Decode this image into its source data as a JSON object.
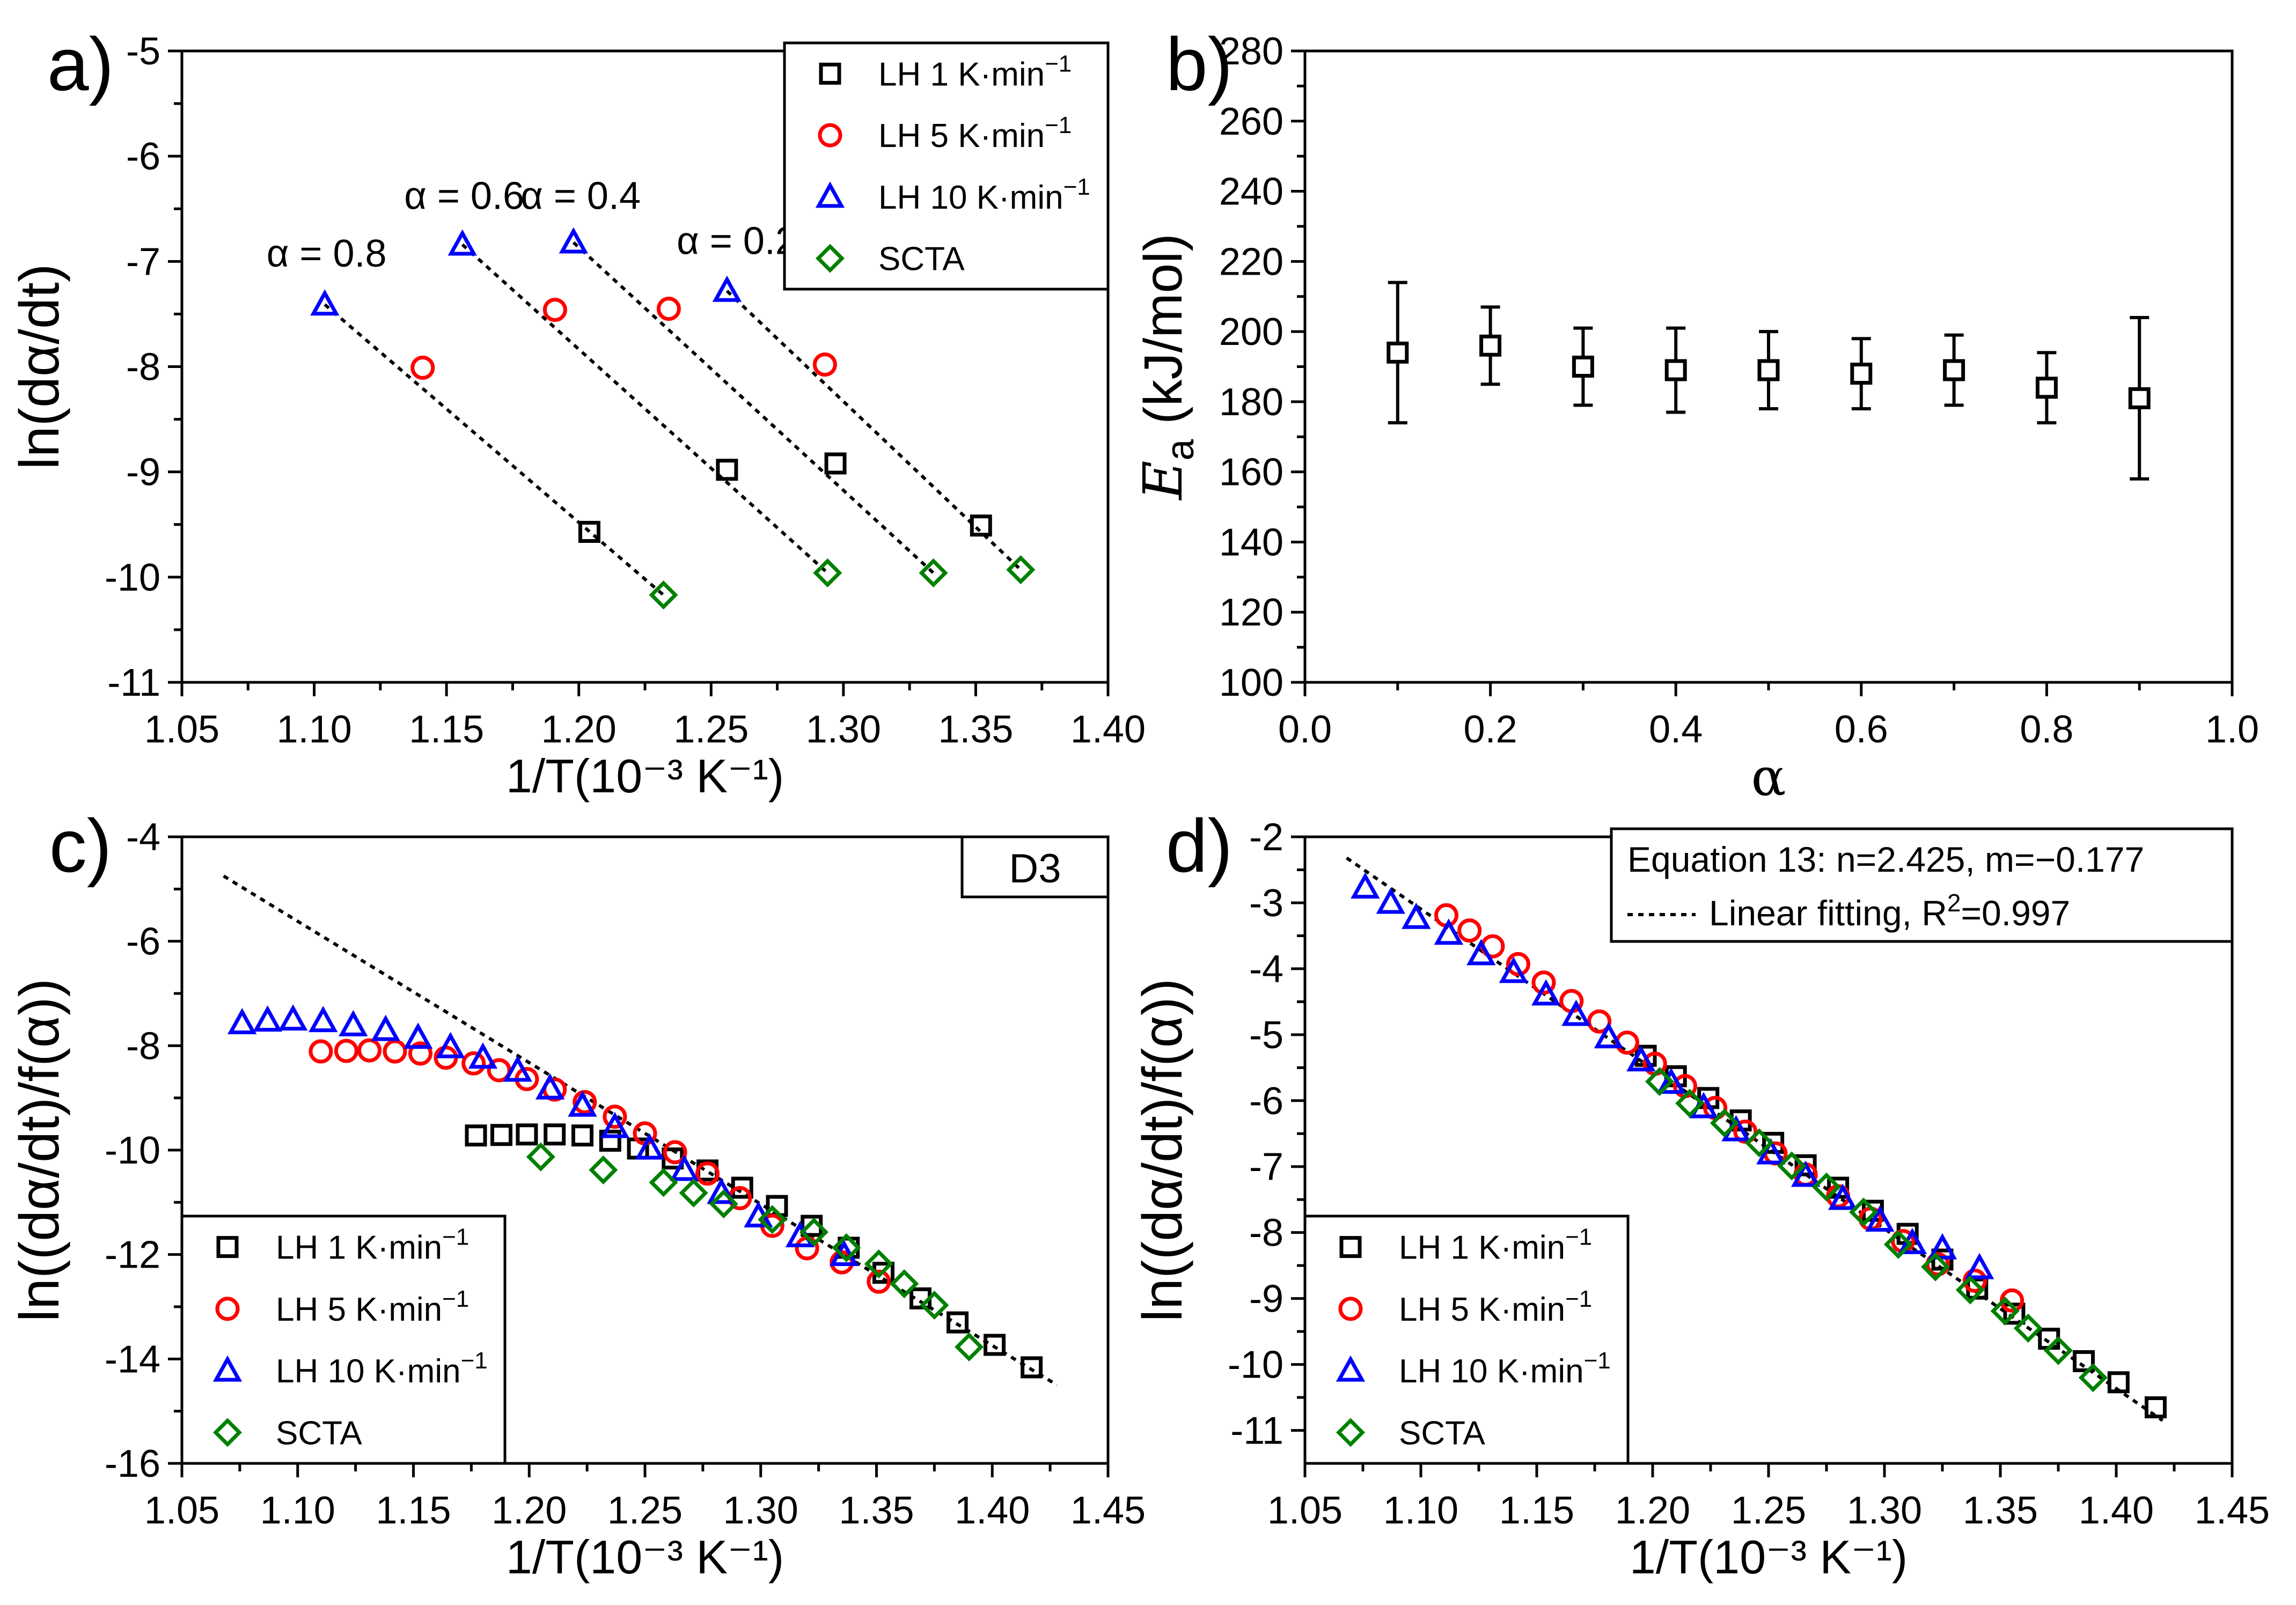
{
  "chart_data": [
    {
      "id": "a",
      "type": "scatter",
      "panel_label": "a)",
      "xlabel": "1/T(10⁻³ K⁻¹)",
      "ylabel": "ln(dα/dt)",
      "xlim": [
        1.05,
        1.4
      ],
      "ylim": [
        -11,
        -5
      ],
      "xticks": [
        "1.05",
        "1.10",
        "1.15",
        "1.20",
        "1.25",
        "1.30",
        "1.35",
        "1.40"
      ],
      "yticks": [
        "-5",
        "-6",
        "-7",
        "-8",
        "-9",
        "-10",
        "-11"
      ],
      "legend": {
        "placement": "top-right"
      },
      "series": [
        {
          "name": "LH 1 K·min⁻¹",
          "marker": "square",
          "color": "#000000",
          "x": [
            1.204,
            1.256,
            1.297,
            1.352
          ],
          "y": [
            -9.57,
            -8.98,
            -8.92,
            -9.51
          ]
        },
        {
          "name": "LH 5 K·min⁻¹",
          "marker": "circle",
          "color": "#ff0000",
          "x": [
            1.141,
            1.191,
            1.234,
            1.293
          ],
          "y": [
            -8.01,
            -7.46,
            -7.45,
            -7.98
          ]
        },
        {
          "name": "LH 10 K·min⁻¹",
          "marker": "triangle",
          "color": "#0000ff",
          "x": [
            1.104,
            1.156,
            1.198,
            1.256
          ],
          "y": [
            -7.41,
            -6.84,
            -6.82,
            -7.28
          ]
        },
        {
          "name": "SCTA",
          "marker": "diamond",
          "color": "#008000",
          "x": [
            1.232,
            1.294,
            1.334,
            1.367
          ],
          "y": [
            -10.17,
            -9.96,
            -9.96,
            -9.93
          ]
        }
      ],
      "fit_lines": [
        {
          "x": [
            1.104,
            1.232
          ],
          "y": [
            -7.41,
            -10.17
          ]
        },
        {
          "x": [
            1.156,
            1.294
          ],
          "y": [
            -6.84,
            -9.96
          ]
        },
        {
          "x": [
            1.198,
            1.334
          ],
          "y": [
            -6.82,
            -9.96
          ]
        },
        {
          "x": [
            1.256,
            1.367
          ],
          "y": [
            -7.28,
            -9.93
          ]
        }
      ],
      "annotations": [
        {
          "text": "α = 0.8",
          "x": 1.082,
          "y": -7.05
        },
        {
          "text": "α = 0.6",
          "x": 1.134,
          "y": -6.5
        },
        {
          "text": "α = 0.4",
          "x": 1.178,
          "y": -6.5
        },
        {
          "text": "α = 0.2",
          "x": 1.237,
          "y": -6.93
        }
      ]
    },
    {
      "id": "b",
      "type": "scatter",
      "panel_label": "b)",
      "xlabel": "α",
      "ylabel_main": "E",
      "ylabel_sub": "a",
      "ylabel_rest": " (kJ/mol)",
      "xlim": [
        0.0,
        1.0
      ],
      "ylim": [
        100,
        280
      ],
      "xticks": [
        "0.0",
        "0.2",
        "0.4",
        "0.6",
        "0.8",
        "1.0"
      ],
      "yticks": [
        "100",
        "120",
        "140",
        "160",
        "180",
        "200",
        "220",
        "240",
        "260",
        "280"
      ],
      "series": [
        {
          "name": "Ea",
          "marker": "square",
          "color": "#000000",
          "x": [
            0.1,
            0.2,
            0.3,
            0.4,
            0.5,
            0.6,
            0.7,
            0.8,
            0.9
          ],
          "y": [
            194,
            196,
            190,
            189,
            189,
            188,
            189,
            184,
            181
          ],
          "error_low": [
            174,
            185,
            179,
            177,
            178,
            178,
            179,
            174,
            158
          ],
          "error_high": [
            214,
            207,
            201,
            201,
            200,
            198,
            199,
            194,
            204
          ]
        }
      ]
    },
    {
      "id": "c",
      "type": "scatter",
      "panel_label": "c)",
      "xlabel": "1/T(10⁻³ K⁻¹)",
      "ylabel": "ln((dα/dt)/f(α))",
      "xlim": [
        1.05,
        1.45
      ],
      "ylim": [
        -16,
        -4
      ],
      "xticks": [
        "1.05",
        "1.10",
        "1.15",
        "1.20",
        "1.25",
        "1.30",
        "1.35",
        "1.40",
        "1.45"
      ],
      "yticks": [
        "-4",
        "-6",
        "-8",
        "-10",
        "-12",
        "-14",
        "-16"
      ],
      "model_label": "D3",
      "legend": {
        "placement": "bottom-left"
      },
      "series": [
        {
          "name": "LH 1 K·min⁻¹",
          "marker": "square",
          "color": "#000000",
          "x": [
            1.177,
            1.188,
            1.199,
            1.211,
            1.223,
            1.235,
            1.247,
            1.262,
            1.277,
            1.292,
            1.307,
            1.322,
            1.338,
            1.353,
            1.369,
            1.385,
            1.401,
            1.417
          ],
          "y": [
            -9.72,
            -9.71,
            -9.7,
            -9.7,
            -9.72,
            -9.82,
            -9.97,
            -10.16,
            -10.39,
            -10.72,
            -11.07,
            -11.45,
            -11.87,
            -12.35,
            -12.84,
            -13.3,
            -13.73,
            -14.16
          ]
        },
        {
          "name": "LH 5 K·min⁻¹",
          "marker": "circle",
          "color": "#ff0000",
          "x": [
            1.11,
            1.121,
            1.131,
            1.142,
            1.153,
            1.164,
            1.176,
            1.187,
            1.199,
            1.211,
            1.224,
            1.237,
            1.25,
            1.263,
            1.277,
            1.291,
            1.305,
            1.32,
            1.335,
            1.351
          ],
          "y": [
            -8.11,
            -8.1,
            -8.09,
            -8.11,
            -8.15,
            -8.23,
            -8.34,
            -8.47,
            -8.64,
            -8.84,
            -9.08,
            -9.36,
            -9.68,
            -10.04,
            -10.45,
            -10.92,
            -11.45,
            -11.88,
            -12.15,
            -12.52
          ]
        },
        {
          "name": "LH 10 K·min⁻¹",
          "marker": "triangle",
          "color": "#0000ff",
          "x": [
            1.076,
            1.087,
            1.098,
            1.111,
            1.124,
            1.138,
            1.152,
            1.166,
            1.18,
            1.195,
            1.209,
            1.223,
            1.237,
            1.252,
            1.267,
            1.283,
            1.299,
            1.317,
            1.336
          ],
          "y": [
            -7.57,
            -7.52,
            -7.5,
            -7.53,
            -7.61,
            -7.7,
            -7.85,
            -8.03,
            -8.23,
            -8.48,
            -8.82,
            -9.15,
            -9.56,
            -9.97,
            -10.38,
            -10.82,
            -11.27,
            -11.65,
            -12.01
          ]
        },
        {
          "name": "SCTA",
          "marker": "diamond",
          "color": "#008000",
          "x": [
            1.205,
            1.232,
            1.258,
            1.271,
            1.284,
            1.305,
            1.323,
            1.337,
            1.351,
            1.362,
            1.375,
            1.39
          ],
          "y": [
            -10.13,
            -10.38,
            -10.62,
            -10.82,
            -11.03,
            -11.33,
            -11.57,
            -11.87,
            -12.18,
            -12.56,
            -12.97,
            -13.77
          ]
        }
      ],
      "fit_line": {
        "x": [
          1.068,
          1.428
        ],
        "y": [
          -4.75,
          -14.5
        ]
      }
    },
    {
      "id": "d",
      "type": "scatter",
      "panel_label": "d)",
      "xlabel": "1/T(10⁻³ K⁻¹)",
      "ylabel": "ln((dα/dt)/f(α))",
      "xlim": [
        1.05,
        1.45
      ],
      "ylim": [
        -11.5,
        -2
      ],
      "xticks": [
        "1.05",
        "1.10",
        "1.15",
        "1.20",
        "1.25",
        "1.30",
        "1.35",
        "1.40",
        "1.45"
      ],
      "yticks": [
        "-2",
        "-3",
        "-4",
        "-5",
        "-6",
        "-7",
        "-8",
        "-9",
        "-10",
        "-11"
      ],
      "equation_text": "Equation 13: n=2.425, m=−0.177",
      "fit_label": "Linear fitting, R",
      "fit_label_sup": "2",
      "fit_label_end": "=0.997",
      "legend": {
        "placement": "bottom-left"
      },
      "series": [
        {
          "name": "LH 1 K·min⁻¹",
          "marker": "square",
          "color": "#000000",
          "x": [
            1.197,
            1.21,
            1.224,
            1.238,
            1.252,
            1.266,
            1.28,
            1.295,
            1.31,
            1.325,
            1.34,
            1.356,
            1.371,
            1.386,
            1.401,
            1.417
          ],
          "y": [
            -5.32,
            -5.63,
            -5.96,
            -6.3,
            -6.64,
            -6.98,
            -7.32,
            -7.67,
            -8.02,
            -8.41,
            -8.85,
            -9.23,
            -9.61,
            -9.95,
            -10.27,
            -10.65
          ]
        },
        {
          "name": "LH 5 K·min⁻¹",
          "marker": "circle",
          "color": "#ff0000",
          "x": [
            1.111,
            1.121,
            1.131,
            1.142,
            1.153,
            1.165,
            1.177,
            1.189,
            1.201,
            1.214,
            1.227,
            1.24,
            1.253,
            1.266,
            1.28,
            1.294,
            1.308,
            1.323,
            1.339,
            1.355
          ],
          "y": [
            -3.19,
            -3.42,
            -3.66,
            -3.93,
            -4.21,
            -4.49,
            -4.8,
            -5.12,
            -5.44,
            -5.78,
            -6.11,
            -6.47,
            -6.8,
            -7.12,
            -7.45,
            -7.79,
            -8.13,
            -8.48,
            -8.73,
            -9.03
          ]
        },
        {
          "name": "LH 10 K·min⁻¹",
          "marker": "triangle",
          "color": "#0000ff",
          "x": [
            1.076,
            1.087,
            1.098,
            1.112,
            1.126,
            1.14,
            1.154,
            1.167,
            1.181,
            1.195,
            1.208,
            1.222,
            1.236,
            1.251,
            1.266,
            1.282,
            1.298,
            1.312,
            1.325,
            1.341
          ],
          "y": [
            -2.77,
            -3.0,
            -3.23,
            -3.47,
            -3.78,
            -4.05,
            -4.39,
            -4.7,
            -5.04,
            -5.39,
            -5.73,
            -6.1,
            -6.45,
            -6.8,
            -7.14,
            -7.49,
            -7.82,
            -8.16,
            -8.24,
            -8.54
          ]
        },
        {
          "name": "SCTA",
          "marker": "diamond",
          "color": "#008000",
          "x": [
            1.203,
            1.216,
            1.231,
            1.246,
            1.26,
            1.275,
            1.291,
            1.306,
            1.322,
            1.337,
            1.352,
            1.362,
            1.375,
            1.39
          ],
          "y": [
            -5.71,
            -6.04,
            -6.34,
            -6.64,
            -6.99,
            -7.31,
            -7.69,
            -8.18,
            -8.52,
            -8.87,
            -9.19,
            -9.45,
            -9.79,
            -10.2
          ]
        }
      ],
      "fit_line": {
        "x": [
          1.068,
          1.42
        ],
        "y": [
          -2.32,
          -10.85
        ]
      }
    }
  ]
}
